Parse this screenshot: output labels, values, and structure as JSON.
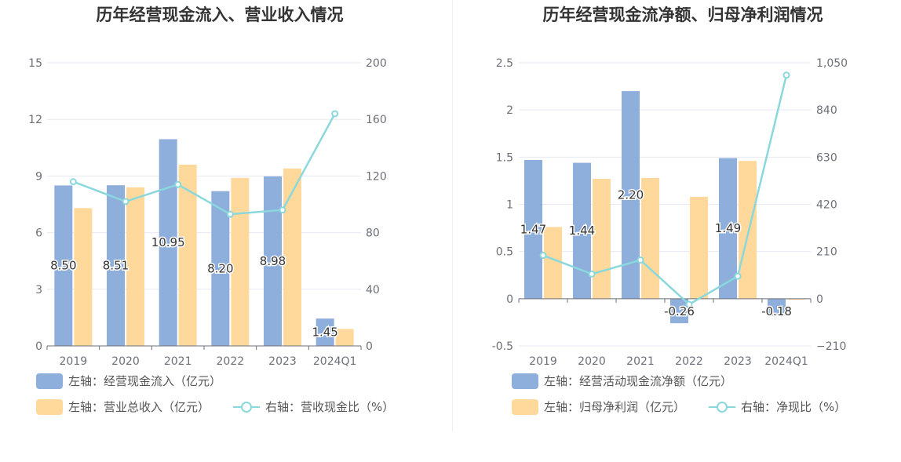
{
  "colors": {
    "blue": "#8eaedc",
    "orange": "#ffd99b",
    "line": "#8ad8dc",
    "grid": "#e6e9f2",
    "axis": "#6e7079"
  },
  "chart_data": [
    {
      "type": "bar",
      "title": "历年经营现金流入、营业收入情况",
      "categories": [
        "2019",
        "2020",
        "2021",
        "2022",
        "2023",
        "2024Q1"
      ],
      "left_ticks": [
        "0",
        "3",
        "6",
        "9",
        "12",
        "15"
      ],
      "right_ticks": [
        "0",
        "40",
        "80",
        "120",
        "160",
        "200"
      ],
      "ylim_left": [
        0,
        15
      ],
      "ylim_right": [
        0,
        200
      ],
      "series": [
        {
          "name": "左轴：经营现金流入（亿元）",
          "axis": "left",
          "kind": "bar",
          "values": [
            8.5,
            8.51,
            10.95,
            8.2,
            8.98,
            1.45
          ],
          "labels": [
            "8.50",
            "8.51",
            "10.95",
            "8.20",
            "8.98",
            "1.45"
          ]
        },
        {
          "name": "左轴：营业总收入（亿元）",
          "axis": "left",
          "kind": "bar",
          "values": [
            7.3,
            8.4,
            9.6,
            8.9,
            9.4,
            0.9
          ]
        },
        {
          "name": "右轴：营收现金比（%）",
          "axis": "right",
          "kind": "line",
          "values": [
            116,
            102,
            114,
            93,
            96,
            164
          ]
        }
      ]
    },
    {
      "type": "bar",
      "title": "历年经营现金流净额、归母净利润情况",
      "categories": [
        "2019",
        "2020",
        "2021",
        "2022",
        "2023",
        "2024Q1"
      ],
      "left_ticks": [
        "-0.5",
        "0",
        "0.5",
        "1",
        "1.5",
        "2",
        "2.5"
      ],
      "right_ticks": [
        "−210",
        "0",
        "210",
        "420",
        "630",
        "840",
        "1,050"
      ],
      "ylim_left": [
        -0.5,
        2.5
      ],
      "ylim_right": [
        -210,
        1050
      ],
      "series": [
        {
          "name": "左轴：经营活动现金流净额（亿元）",
          "axis": "left",
          "kind": "bar",
          "values": [
            1.47,
            1.44,
            2.2,
            -0.26,
            1.49,
            -0.18
          ],
          "labels": [
            "1.47",
            "1.44",
            "2.20",
            "-0.26",
            "1.49",
            "-0.18"
          ]
        },
        {
          "name": "左轴：归母净利润（亿元）",
          "axis": "left",
          "kind": "bar",
          "values": [
            0.76,
            1.27,
            1.28,
            1.08,
            1.46,
            -0.01
          ]
        },
        {
          "name": "右轴：净现比（%）",
          "axis": "right",
          "kind": "line",
          "values": [
            193,
            110,
            172,
            -25,
            100,
            995
          ]
        }
      ]
    }
  ]
}
